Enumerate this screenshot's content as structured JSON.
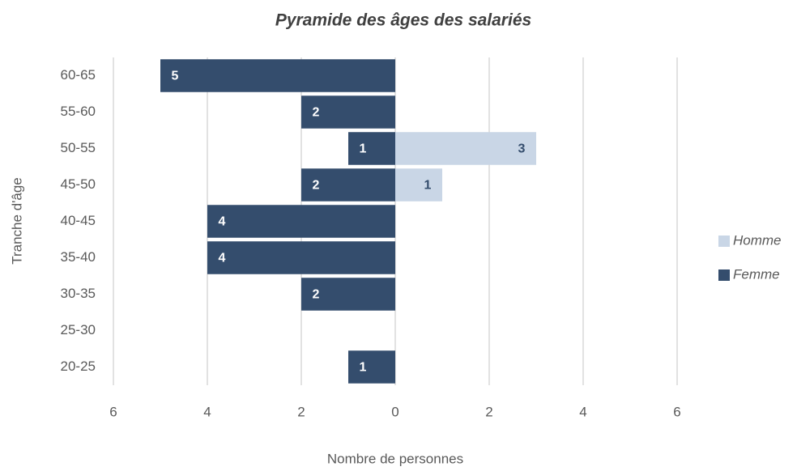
{
  "chart_data": {
    "type": "bar",
    "orientation": "horizontal",
    "stacked": true,
    "title": "Pyramide des âges des salariés",
    "x_label": "Nombre de personnes",
    "y_label": "Tranche d'âge",
    "categories": [
      "20-25",
      "25-30",
      "30-35",
      "35-40",
      "40-45",
      "45-50",
      "50-55",
      "55-60",
      "60-65"
    ],
    "series": [
      {
        "name": "Homme",
        "color": "#c9d6e6",
        "values": [
          null,
          null,
          null,
          null,
          null,
          1,
          3,
          null,
          null
        ]
      },
      {
        "name": "Femme",
        "color": "#344d6d",
        "values": [
          -1,
          null,
          -2,
          -4,
          -4,
          -2,
          -1,
          -2,
          -5
        ],
        "value_labels": [
          "1",
          null,
          "2",
          "4",
          "4",
          "2",
          "1",
          "2",
          "5"
        ]
      }
    ],
    "xlim": [
      -6,
      6
    ],
    "xticks": [
      {
        "value": -6,
        "label": "6"
      },
      {
        "value": -4,
        "label": "4"
      },
      {
        "value": -2,
        "label": "2"
      },
      0,
      2,
      4,
      6
    ],
    "grid": true,
    "legend": "right"
  }
}
